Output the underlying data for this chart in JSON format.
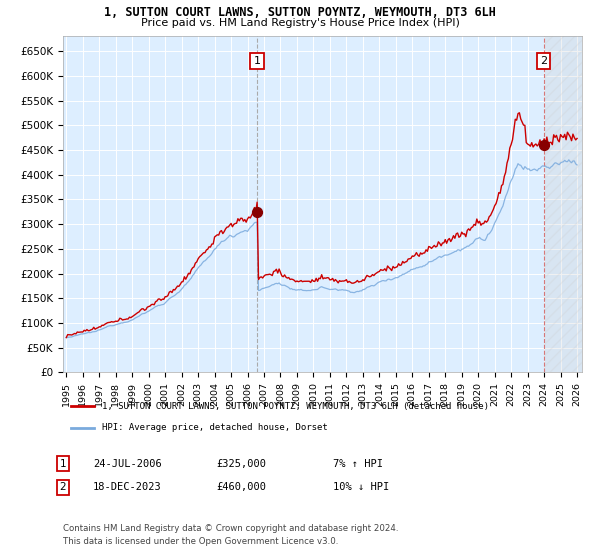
{
  "title": "1, SUTTON COURT LAWNS, SUTTON POYNTZ, WEYMOUTH, DT3 6LH",
  "subtitle": "Price paid vs. HM Land Registry's House Price Index (HPI)",
  "ylim": [
    0,
    680000
  ],
  "yticks": [
    0,
    50000,
    100000,
    150000,
    200000,
    250000,
    300000,
    350000,
    400000,
    450000,
    500000,
    550000,
    600000,
    650000
  ],
  "ytick_labels": [
    "£0",
    "£50K",
    "£100K",
    "£150K",
    "£200K",
    "£250K",
    "£300K",
    "£350K",
    "£400K",
    "£450K",
    "£500K",
    "£550K",
    "£600K",
    "£650K"
  ],
  "hpi_color": "#7aaadd",
  "price_color": "#cc0000",
  "bg_color": "#ddeeff",
  "grid_color": "#ffffff",
  "point1_year": 2006,
  "point1_month": 7,
  "point1_day": 24,
  "point1_value": 325000,
  "point2_year": 2023,
  "point2_month": 12,
  "point2_day": 18,
  "point2_value": 460000,
  "legend_line1": "1, SUTTON COURT LAWNS, SUTTON POYNTZ, WEYMOUTH, DT3 6LH (detached house)",
  "legend_line2": "HPI: Average price, detached house, Dorset",
  "footer1": "Contains HM Land Registry data © Crown copyright and database right 2024.",
  "footer2": "This data is licensed under the Open Government Licence v3.0.",
  "xstart_year": 1995,
  "xend_year": 2026
}
